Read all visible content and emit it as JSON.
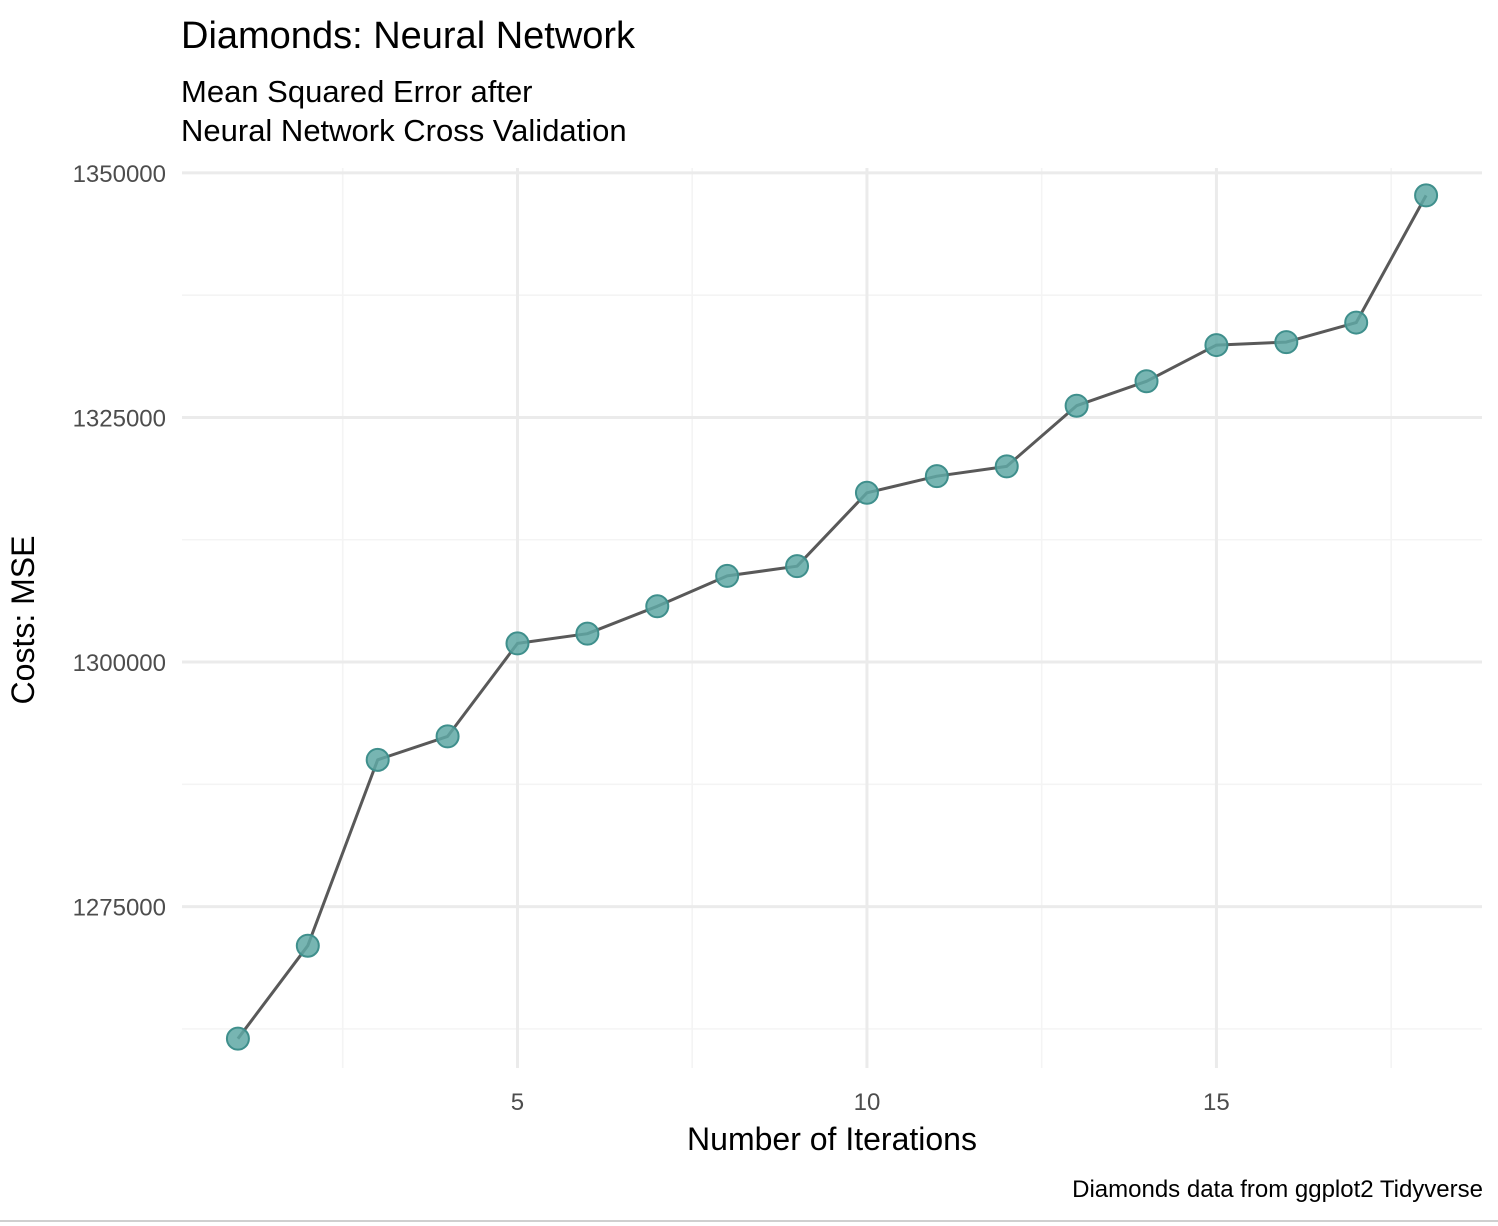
{
  "chart_data": {
    "type": "line",
    "title": "Diamonds: Neural Network",
    "subtitle_lines": [
      "Mean Squared Error after",
      "Neural Network Cross Validation"
    ],
    "xlabel": "Number of Iterations",
    "ylabel": "Costs: MSE",
    "caption": "Diamonds data from ggplot2 Tidyverse",
    "x_ticks": [
      5,
      10,
      15
    ],
    "x_tick_labels": [
      "5",
      "10",
      "15"
    ],
    "y_ticks": [
      1275000,
      1300000,
      1325000,
      1350000
    ],
    "y_tick_labels": [
      "1275000",
      "1300000",
      "1325000",
      "1350000"
    ],
    "xlim": [
      0.2,
      18.8
    ],
    "ylim": [
      1258500,
      1350500
    ],
    "grid": true,
    "legend": "none",
    "series": [
      {
        "x": [
          1,
          2,
          3,
          4,
          5,
          6,
          7,
          8,
          9,
          10,
          11,
          12,
          13,
          14,
          15,
          16,
          17,
          18
        ],
        "values": [
          1261500,
          1271000,
          1290000,
          1292400,
          1301900,
          1302900,
          1305700,
          1308800,
          1309800,
          1317300,
          1319000,
          1320000,
          1326200,
          1328700,
          1332400,
          1332700,
          1334700,
          1347700
        ]
      }
    ],
    "colors": {
      "point_fill": "#5fa8a5",
      "point_stroke": "#3f8f8c",
      "line": "#595959",
      "grid_major": "#ebebeb",
      "grid_minor": "#f4f4f4"
    }
  }
}
